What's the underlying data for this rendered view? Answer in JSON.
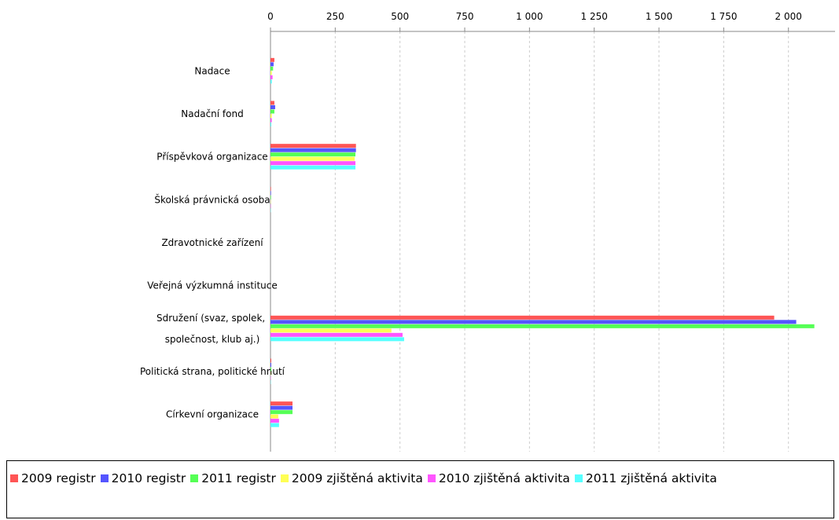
{
  "chart_data": {
    "type": "barh",
    "categories": [
      "Nadace",
      "Nadační fond",
      "Příspěvková organizace",
      "Školská právnická osoba",
      "Zdravotnické zařízení",
      "Veřejná výzkumná instituce",
      "Sdružení (svaz, spolek, společnost, klub aj.)",
      "Politická strana, politické hnutí",
      "Církevní organizace"
    ],
    "series": [
      {
        "name": "2009 registr",
        "color": "#ff5555",
        "values": [
          15,
          15,
          330,
          2,
          0,
          0,
          1945,
          3,
          85
        ]
      },
      {
        "name": "2010 registr",
        "color": "#5555ff",
        "values": [
          12,
          18,
          330,
          2,
          0,
          0,
          2030,
          3,
          85
        ]
      },
      {
        "name": "2011 registr",
        "color": "#55ff55",
        "values": [
          10,
          15,
          328,
          2,
          0,
          0,
          2100,
          3,
          85
        ]
      },
      {
        "name": "2009 zjištěná aktivita",
        "color": "#ffff55",
        "values": [
          5,
          5,
          325,
          1,
          0,
          0,
          467,
          1,
          30
        ]
      },
      {
        "name": "2010 zjištěná aktivita",
        "color": "#ff55ff",
        "values": [
          8,
          5,
          328,
          1,
          0,
          0,
          510,
          1,
          33
        ]
      },
      {
        "name": "2011 zjištěná aktivita",
        "color": "#55ffff",
        "values": [
          5,
          3,
          328,
          1,
          0,
          0,
          516,
          1,
          33
        ]
      }
    ],
    "xlim": [
      0,
      2180
    ],
    "xticks": [
      0,
      250,
      500,
      750,
      {
        "value": 1000,
        "label": "1 000"
      },
      {
        "value": 1250,
        "label": "1 250"
      },
      {
        "value": 1500,
        "label": "1 500"
      },
      {
        "value": 1750,
        "label": "1 750"
      },
      {
        "value": 2000,
        "label": "2 000"
      }
    ],
    "grid": true
  }
}
